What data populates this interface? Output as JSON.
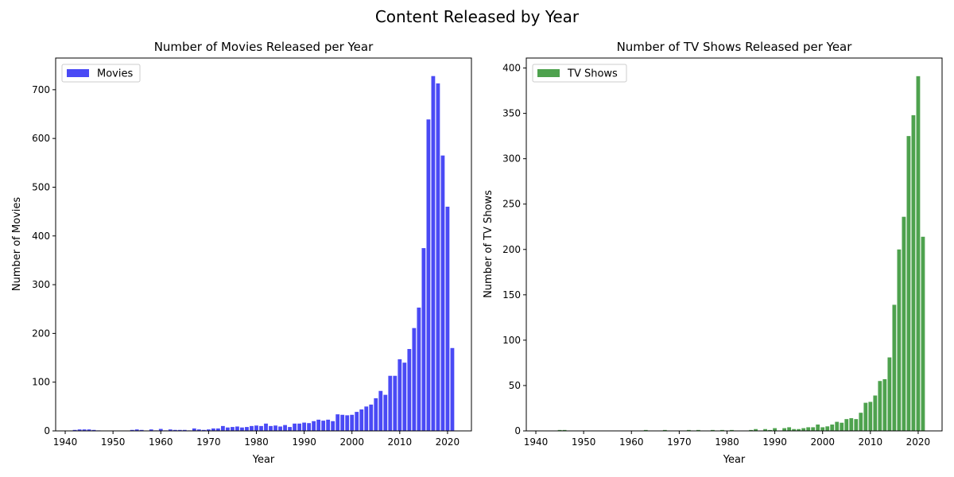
{
  "figure": {
    "suptitle": "Content Released by Year"
  },
  "chart_data": [
    {
      "type": "bar",
      "title": "Number of Movies Released per Year",
      "xlabel": "Year",
      "ylabel": "Number of Movies",
      "xlim": [
        1938,
        2025
      ],
      "ylim": [
        0,
        765
      ],
      "xticks": [
        1940,
        1950,
        1960,
        1970,
        1980,
        1990,
        2000,
        2010,
        2020
      ],
      "yticks": [
        0,
        100,
        200,
        300,
        400,
        500,
        600,
        700
      ],
      "grid": false,
      "legend": {
        "position": "top-left"
      },
      "color": "#4a4af5",
      "series": [
        {
          "name": "Movies",
          "x": [
            1942,
            1943,
            1944,
            1945,
            1946,
            1947,
            1954,
            1955,
            1956,
            1958,
            1959,
            1960,
            1961,
            1962,
            1963,
            1964,
            1965,
            1966,
            1967,
            1968,
            1969,
            1970,
            1971,
            1972,
            1973,
            1974,
            1975,
            1976,
            1977,
            1978,
            1979,
            1980,
            1981,
            1982,
            1983,
            1984,
            1985,
            1986,
            1987,
            1988,
            1989,
            1990,
            1991,
            1992,
            1993,
            1994,
            1995,
            1996,
            1997,
            1998,
            1999,
            2000,
            2001,
            2002,
            2003,
            2004,
            2005,
            2006,
            2007,
            2008,
            2009,
            2010,
            2011,
            2012,
            2013,
            2014,
            2015,
            2016,
            2017,
            2018,
            2019,
            2020,
            2021
          ],
          "values": [
            2,
            3,
            3,
            3,
            2,
            1,
            2,
            3,
            2,
            3,
            1,
            4,
            1,
            3,
            2,
            2,
            2,
            1,
            5,
            3,
            2,
            3,
            5,
            5,
            10,
            7,
            8,
            9,
            7,
            8,
            10,
            11,
            10,
            15,
            10,
            11,
            9,
            12,
            8,
            15,
            15,
            17,
            16,
            20,
            23,
            21,
            23,
            20,
            34,
            33,
            32,
            33,
            39,
            44,
            50,
            54,
            67,
            82,
            74,
            113,
            113,
            147,
            140,
            168,
            211,
            253,
            375,
            639,
            728,
            713,
            565,
            460,
            170
          ]
        }
      ]
    },
    {
      "type": "bar",
      "title": "Number of TV Shows Released per Year",
      "xlabel": "Year",
      "ylabel": "Number of TV Shows",
      "xlim": [
        1938,
        2025
      ],
      "ylim": [
        0,
        411
      ],
      "xticks": [
        1940,
        1950,
        1960,
        1970,
        1980,
        1990,
        2000,
        2010,
        2020
      ],
      "yticks": [
        0,
        50,
        100,
        150,
        200,
        250,
        300,
        350,
        400
      ],
      "grid": false,
      "legend": {
        "position": "top-left"
      },
      "color": "#4ea24e",
      "series": [
        {
          "name": "TV Shows",
          "x": [
            1945,
            1946,
            1963,
            1967,
            1972,
            1974,
            1977,
            1979,
            1981,
            1985,
            1986,
            1988,
            1989,
            1990,
            1992,
            1993,
            1994,
            1995,
            1996,
            1997,
            1998,
            1999,
            2000,
            2001,
            2002,
            2003,
            2004,
            2005,
            2006,
            2007,
            2008,
            2009,
            2010,
            2011,
            2012,
            2013,
            2014,
            2015,
            2016,
            2017,
            2018,
            2019,
            2020,
            2021
          ],
          "values": [
            1,
            1,
            1,
            1,
            1,
            1,
            1,
            1,
            1,
            1,
            2,
            2,
            1,
            3,
            3,
            4,
            2,
            2,
            3,
            4,
            4,
            7,
            4,
            5,
            7,
            10,
            9,
            13,
            14,
            13,
            20,
            31,
            32,
            39,
            55,
            57,
            81,
            139,
            200,
            236,
            325,
            348,
            391,
            214
          ]
        }
      ]
    }
  ]
}
